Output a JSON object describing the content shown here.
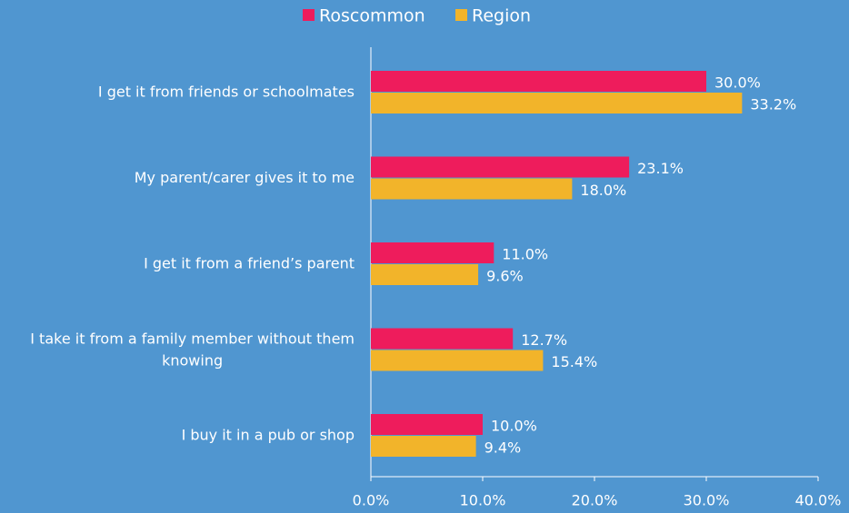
{
  "chart_data": {
    "type": "hbar",
    "categories": [
      "I get it from friends or schoolmates",
      "My parent/carer gives it to me",
      "I get it from a friend’s parent",
      "I take it from a family member without them knowing",
      "I buy it in a pub or shop"
    ],
    "series": [
      {
        "name": "Roscommon",
        "color": "#ee1c5c",
        "values": [
          30.0,
          23.1,
          11.0,
          12.7,
          10.0
        ],
        "value_labels": [
          "30.0%",
          "23.1%",
          "11.0%",
          "12.7%",
          "10.0%"
        ]
      },
      {
        "name": "Region",
        "color": "#f2b42a",
        "values": [
          33.2,
          18.0,
          9.6,
          15.4,
          9.4
        ],
        "value_labels": [
          "33.2%",
          "18.0%",
          "9.6%",
          "15.4%",
          "9.4%"
        ]
      }
    ],
    "xlim": [
      0,
      40
    ],
    "xticks": [
      {
        "value": 0,
        "label": "0.0%"
      },
      {
        "value": 10,
        "label": "10.0%"
      },
      {
        "value": 20,
        "label": "20.0%"
      },
      {
        "value": 30,
        "label": "30.0%"
      },
      {
        "value": 40,
        "label": "40.0%"
      }
    ],
    "legend": "top"
  }
}
